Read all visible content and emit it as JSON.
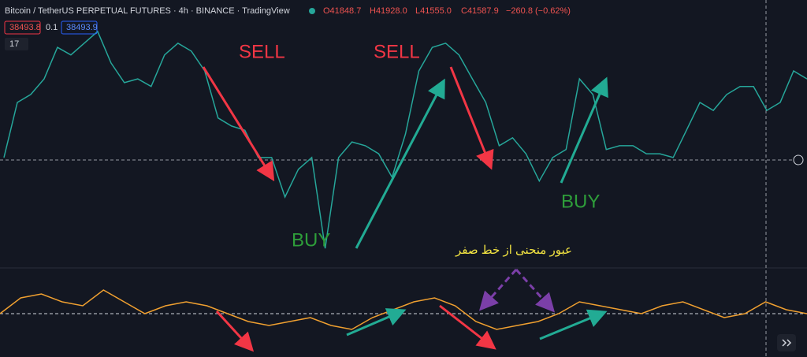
{
  "header": {
    "symbol": "Bitcoin / TetherUS PERPETUAL FUTURES · 4h · BINANCE · TradingView",
    "open": "O41848.7",
    "high": "H41928.0",
    "low": "L41555.0",
    "close": "C41587.9",
    "change": "−260.8 (−0.62%)"
  },
  "badges": {
    "bid": "38493.8",
    "spread": "0.1",
    "ask": "38493.9",
    "count": "17"
  },
  "annotations": {
    "sell_1": "SELL",
    "sell_2": "SELL",
    "buy_1": "BUY",
    "buy_2": "BUY",
    "zero_cross": "عبور منحنی از خط صفر"
  },
  "price_pane": {
    "ylim": [
      37000,
      43000
    ],
    "values": [
      39440,
      40750,
      40940,
      41310,
      42060,
      41880,
      42160,
      42440,
      41690,
      41220,
      41310,
      41130,
      41880,
      42160,
      41970,
      41500,
      40380,
      40190,
      40090,
      39440,
      39440,
      38500,
      39160,
      39440,
      37280,
      39440,
      39810,
      39720,
      39530,
      38970,
      40000,
      41500,
      42060,
      42160,
      41880,
      41310,
      40750,
      39720,
      39910,
      39530,
      38880,
      39440,
      39630,
      41310,
      40940,
      39630,
      39720,
      39720,
      39530,
      39530,
      39440,
      40090,
      40750,
      40560,
      40940,
      41130,
      41130,
      40560,
      40750,
      41500,
      41310
    ],
    "color": "#26a69a"
  },
  "oscillator_pane": {
    "ylim": [
      -50,
      50
    ],
    "values": [
      0,
      20,
      25,
      15,
      10,
      30,
      15,
      0,
      10,
      15,
      10,
      0,
      -10,
      -15,
      -10,
      -5,
      -15,
      -20,
      -5,
      5,
      15,
      20,
      10,
      -10,
      -20,
      -15,
      -10,
      0,
      15,
      10,
      5,
      0,
      10,
      15,
      5,
      -5,
      0,
      15,
      5,
      0
    ],
    "color": "#f0a030"
  }
}
